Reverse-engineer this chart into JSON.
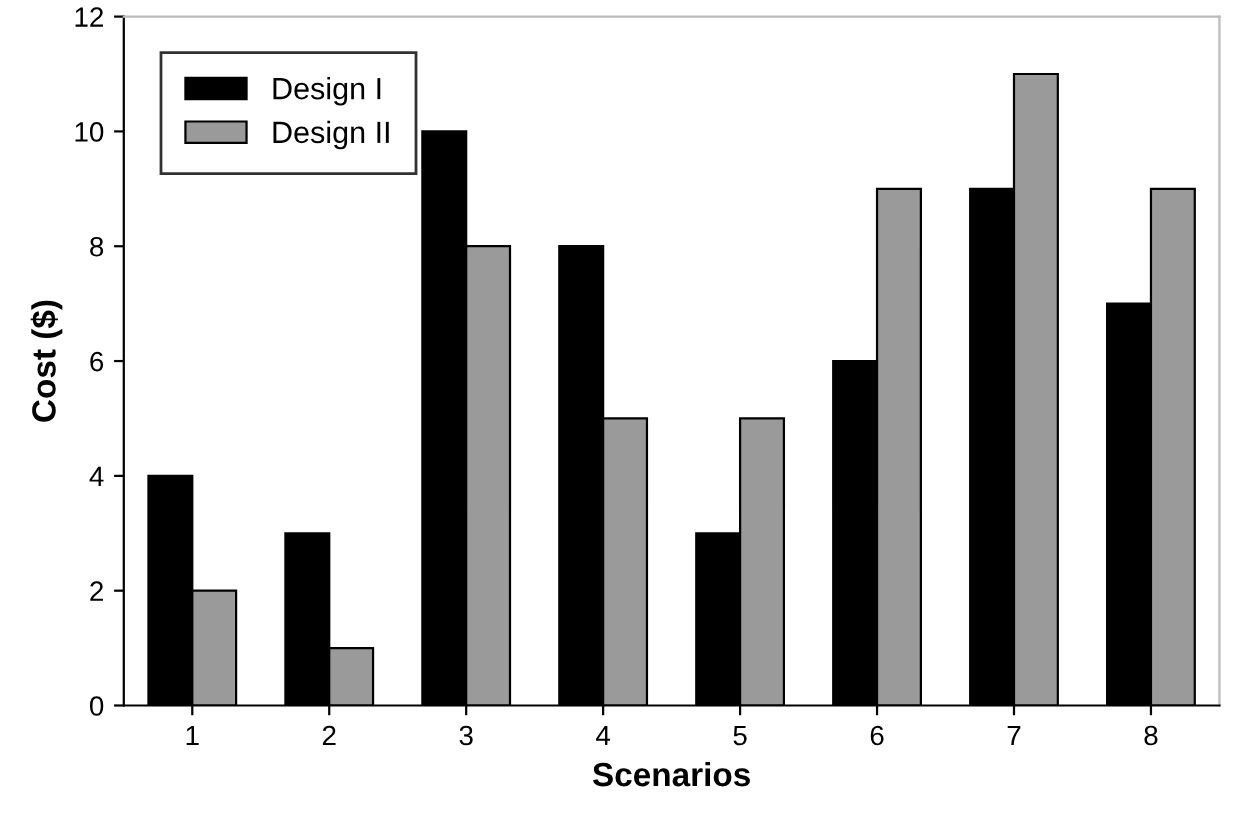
{
  "chart_data": {
    "type": "bar",
    "xlabel": "Scenarios",
    "ylabel": "Cost ($)",
    "categories": [
      "1",
      "2",
      "3",
      "4",
      "5",
      "6",
      "7",
      "8"
    ],
    "series": [
      {
        "name": "Design I",
        "color": "#000000",
        "values": [
          4,
          3,
          10,
          8,
          3,
          6,
          9,
          7
        ]
      },
      {
        "name": "Design II",
        "color": "#9a9a9a",
        "values": [
          2,
          1,
          8,
          5,
          5,
          9,
          11,
          9
        ]
      }
    ],
    "ylim": [
      0,
      12
    ],
    "yticks": [
      0,
      2,
      4,
      6,
      8,
      10,
      12
    ],
    "grid": false,
    "legend": "top left"
  }
}
